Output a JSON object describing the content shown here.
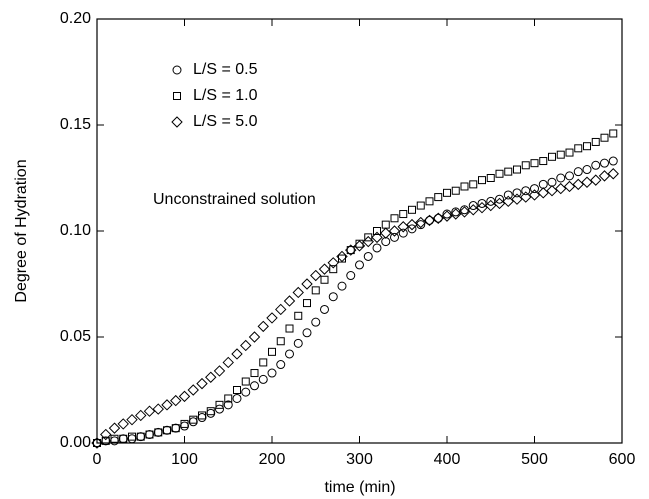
{
  "chart_data": {
    "type": "scatter",
    "xlabel": "time (min)",
    "ylabel": "Degree of Hydration",
    "annotation": "Unconstrained solution",
    "x": [
      0,
      10,
      20,
      30,
      40,
      50,
      60,
      70,
      80,
      90,
      100,
      110,
      120,
      130,
      140,
      150,
      160,
      170,
      180,
      190,
      200,
      210,
      220,
      230,
      240,
      250,
      260,
      270,
      280,
      290,
      300,
      310,
      320,
      330,
      340,
      350,
      360,
      370,
      380,
      390,
      400,
      410,
      420,
      430,
      440,
      450,
      460,
      470,
      480,
      490,
      500,
      510,
      520,
      530,
      540,
      550,
      560,
      570,
      580,
      590
    ],
    "series": [
      {
        "name": "L/S = 0.5",
        "marker": "circle",
        "color": "#000000",
        "values": [
          0,
          0.001,
          0.001,
          0.002,
          0.002,
          0.003,
          0.004,
          0.005,
          0.006,
          0.007,
          0.008,
          0.01,
          0.012,
          0.014,
          0.016,
          0.018,
          0.021,
          0.024,
          0.027,
          0.03,
          0.033,
          0.037,
          0.042,
          0.047,
          0.052,
          0.057,
          0.063,
          0.069,
          0.074,
          0.079,
          0.084,
          0.088,
          0.092,
          0.095,
          0.097,
          0.099,
          0.101,
          0.103,
          0.105,
          0.106,
          0.108,
          0.109,
          0.11,
          0.112,
          0.113,
          0.114,
          0.115,
          0.117,
          0.118,
          0.119,
          0.12,
          0.122,
          0.123,
          0.125,
          0.126,
          0.128,
          0.129,
          0.131,
          0.132,
          0.133
        ]
      },
      {
        "name": "L/S = 1.0",
        "marker": "square",
        "color": "#000000",
        "values": [
          0,
          0.001,
          0.002,
          0.002,
          0.003,
          0.003,
          0.004,
          0.005,
          0.006,
          0.007,
          0.009,
          0.011,
          0.013,
          0.015,
          0.018,
          0.021,
          0.025,
          0.029,
          0.033,
          0.038,
          0.043,
          0.048,
          0.054,
          0.06,
          0.066,
          0.072,
          0.077,
          0.082,
          0.087,
          0.091,
          0.094,
          0.097,
          0.1,
          0.103,
          0.106,
          0.108,
          0.11,
          0.112,
          0.114,
          0.116,
          0.118,
          0.119,
          0.121,
          0.122,
          0.124,
          0.125,
          0.127,
          0.128,
          0.129,
          0.131,
          0.132,
          0.133,
          0.135,
          0.136,
          0.137,
          0.139,
          0.14,
          0.142,
          0.144,
          0.146
        ]
      },
      {
        "name": "L/S = 5.0",
        "marker": "diamond",
        "color": "#000000",
        "values": [
          0,
          0.004,
          0.007,
          0.009,
          0.011,
          0.013,
          0.015,
          0.016,
          0.018,
          0.02,
          0.022,
          0.025,
          0.028,
          0.031,
          0.034,
          0.038,
          0.042,
          0.046,
          0.05,
          0.055,
          0.059,
          0.063,
          0.067,
          0.071,
          0.075,
          0.079,
          0.082,
          0.085,
          0.088,
          0.091,
          0.093,
          0.095,
          0.097,
          0.099,
          0.1,
          0.102,
          0.103,
          0.104,
          0.105,
          0.106,
          0.107,
          0.108,
          0.109,
          0.11,
          0.111,
          0.112,
          0.113,
          0.114,
          0.115,
          0.116,
          0.117,
          0.118,
          0.119,
          0.12,
          0.121,
          0.122,
          0.123,
          0.124,
          0.126,
          0.127
        ]
      }
    ],
    "xlim": [
      0,
      600
    ],
    "xticks": [
      0,
      100,
      200,
      300,
      400,
      500,
      600
    ],
    "ylim": [
      0,
      0.2
    ],
    "yticks": [
      {
        "value": 0,
        "label": "0.00"
      },
      {
        "value": 0.05,
        "label": "0.05"
      },
      {
        "value": 0.1,
        "label": "0.10"
      },
      {
        "value": 0.15,
        "label": "0.15"
      },
      {
        "value": 0.2,
        "label": "0.20"
      }
    ],
    "legend": "upper left",
    "grid": false
  }
}
